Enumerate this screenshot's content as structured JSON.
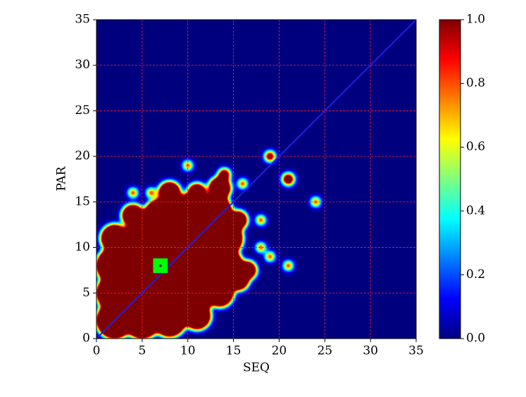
{
  "chart_data": {
    "type": "density",
    "xlabel": "SEQ",
    "ylabel": "PAR",
    "x": [
      2,
      5,
      8,
      11,
      2,
      5,
      8,
      11,
      13.5,
      15.5,
      2,
      5,
      8,
      11,
      14,
      16.5,
      2,
      5,
      8,
      11,
      14,
      4,
      7,
      10,
      13,
      15.5,
      8,
      11,
      13.5,
      14,
      9.5,
      4,
      6,
      10,
      16,
      18,
      19,
      21,
      24,
      21,
      19,
      18
    ],
    "y": [
      2,
      2,
      2,
      2.5,
      5,
      5,
      5,
      5,
      5,
      6.5,
      8,
      8,
      8,
      8,
      8,
      7.5,
      11,
      11,
      11,
      11,
      11,
      13.5,
      13.5,
      14,
      14,
      13,
      16,
      16,
      16.5,
      18,
      10.5,
      16,
      16,
      19,
      17,
      13,
      20,
      17.5,
      15,
      8,
      9,
      10
    ],
    "sizes": [
      2,
      2,
      1.8,
      1.5,
      2,
      2,
      2,
      2,
      1.5,
      1.2,
      2,
      2,
      2,
      2,
      2,
      1,
      1.5,
      2,
      2,
      2,
      2,
      1.2,
      1.8,
      1.8,
      1.8,
      1,
      1.2,
      1,
      1.2,
      0.6,
      1.5,
      0.4,
      0.4,
      0.4,
      0.4,
      0.4,
      0.5,
      0.6,
      0.4,
      0.4,
      0.4,
      0.4
    ],
    "xlim": [
      0,
      35
    ],
    "ylim": [
      0,
      35
    ],
    "xticks": [
      0,
      5,
      10,
      15,
      20,
      25,
      30,
      35
    ],
    "yticks": [
      0,
      5,
      10,
      15,
      20,
      25,
      30,
      35
    ],
    "grid": true,
    "grid_color": "#ff2020",
    "clim": [
      0,
      1
    ],
    "cticks": [
      {
        "value": 0,
        "label": "0.0"
      },
      {
        "value": 0.2,
        "label": "0.2"
      },
      {
        "value": 0.4,
        "label": "0.4"
      },
      {
        "value": 0.6,
        "label": "0.6"
      },
      {
        "value": 0.8,
        "label": "0.8"
      },
      {
        "value": 1,
        "label": "1.0"
      }
    ],
    "colormap": "jet",
    "reference_line": {
      "x": [
        0,
        35
      ],
      "y": [
        0,
        35
      ],
      "color": "#1f1fe0"
    },
    "marker": {
      "x": 7,
      "y": 8,
      "color": "#00ff00"
    }
  }
}
